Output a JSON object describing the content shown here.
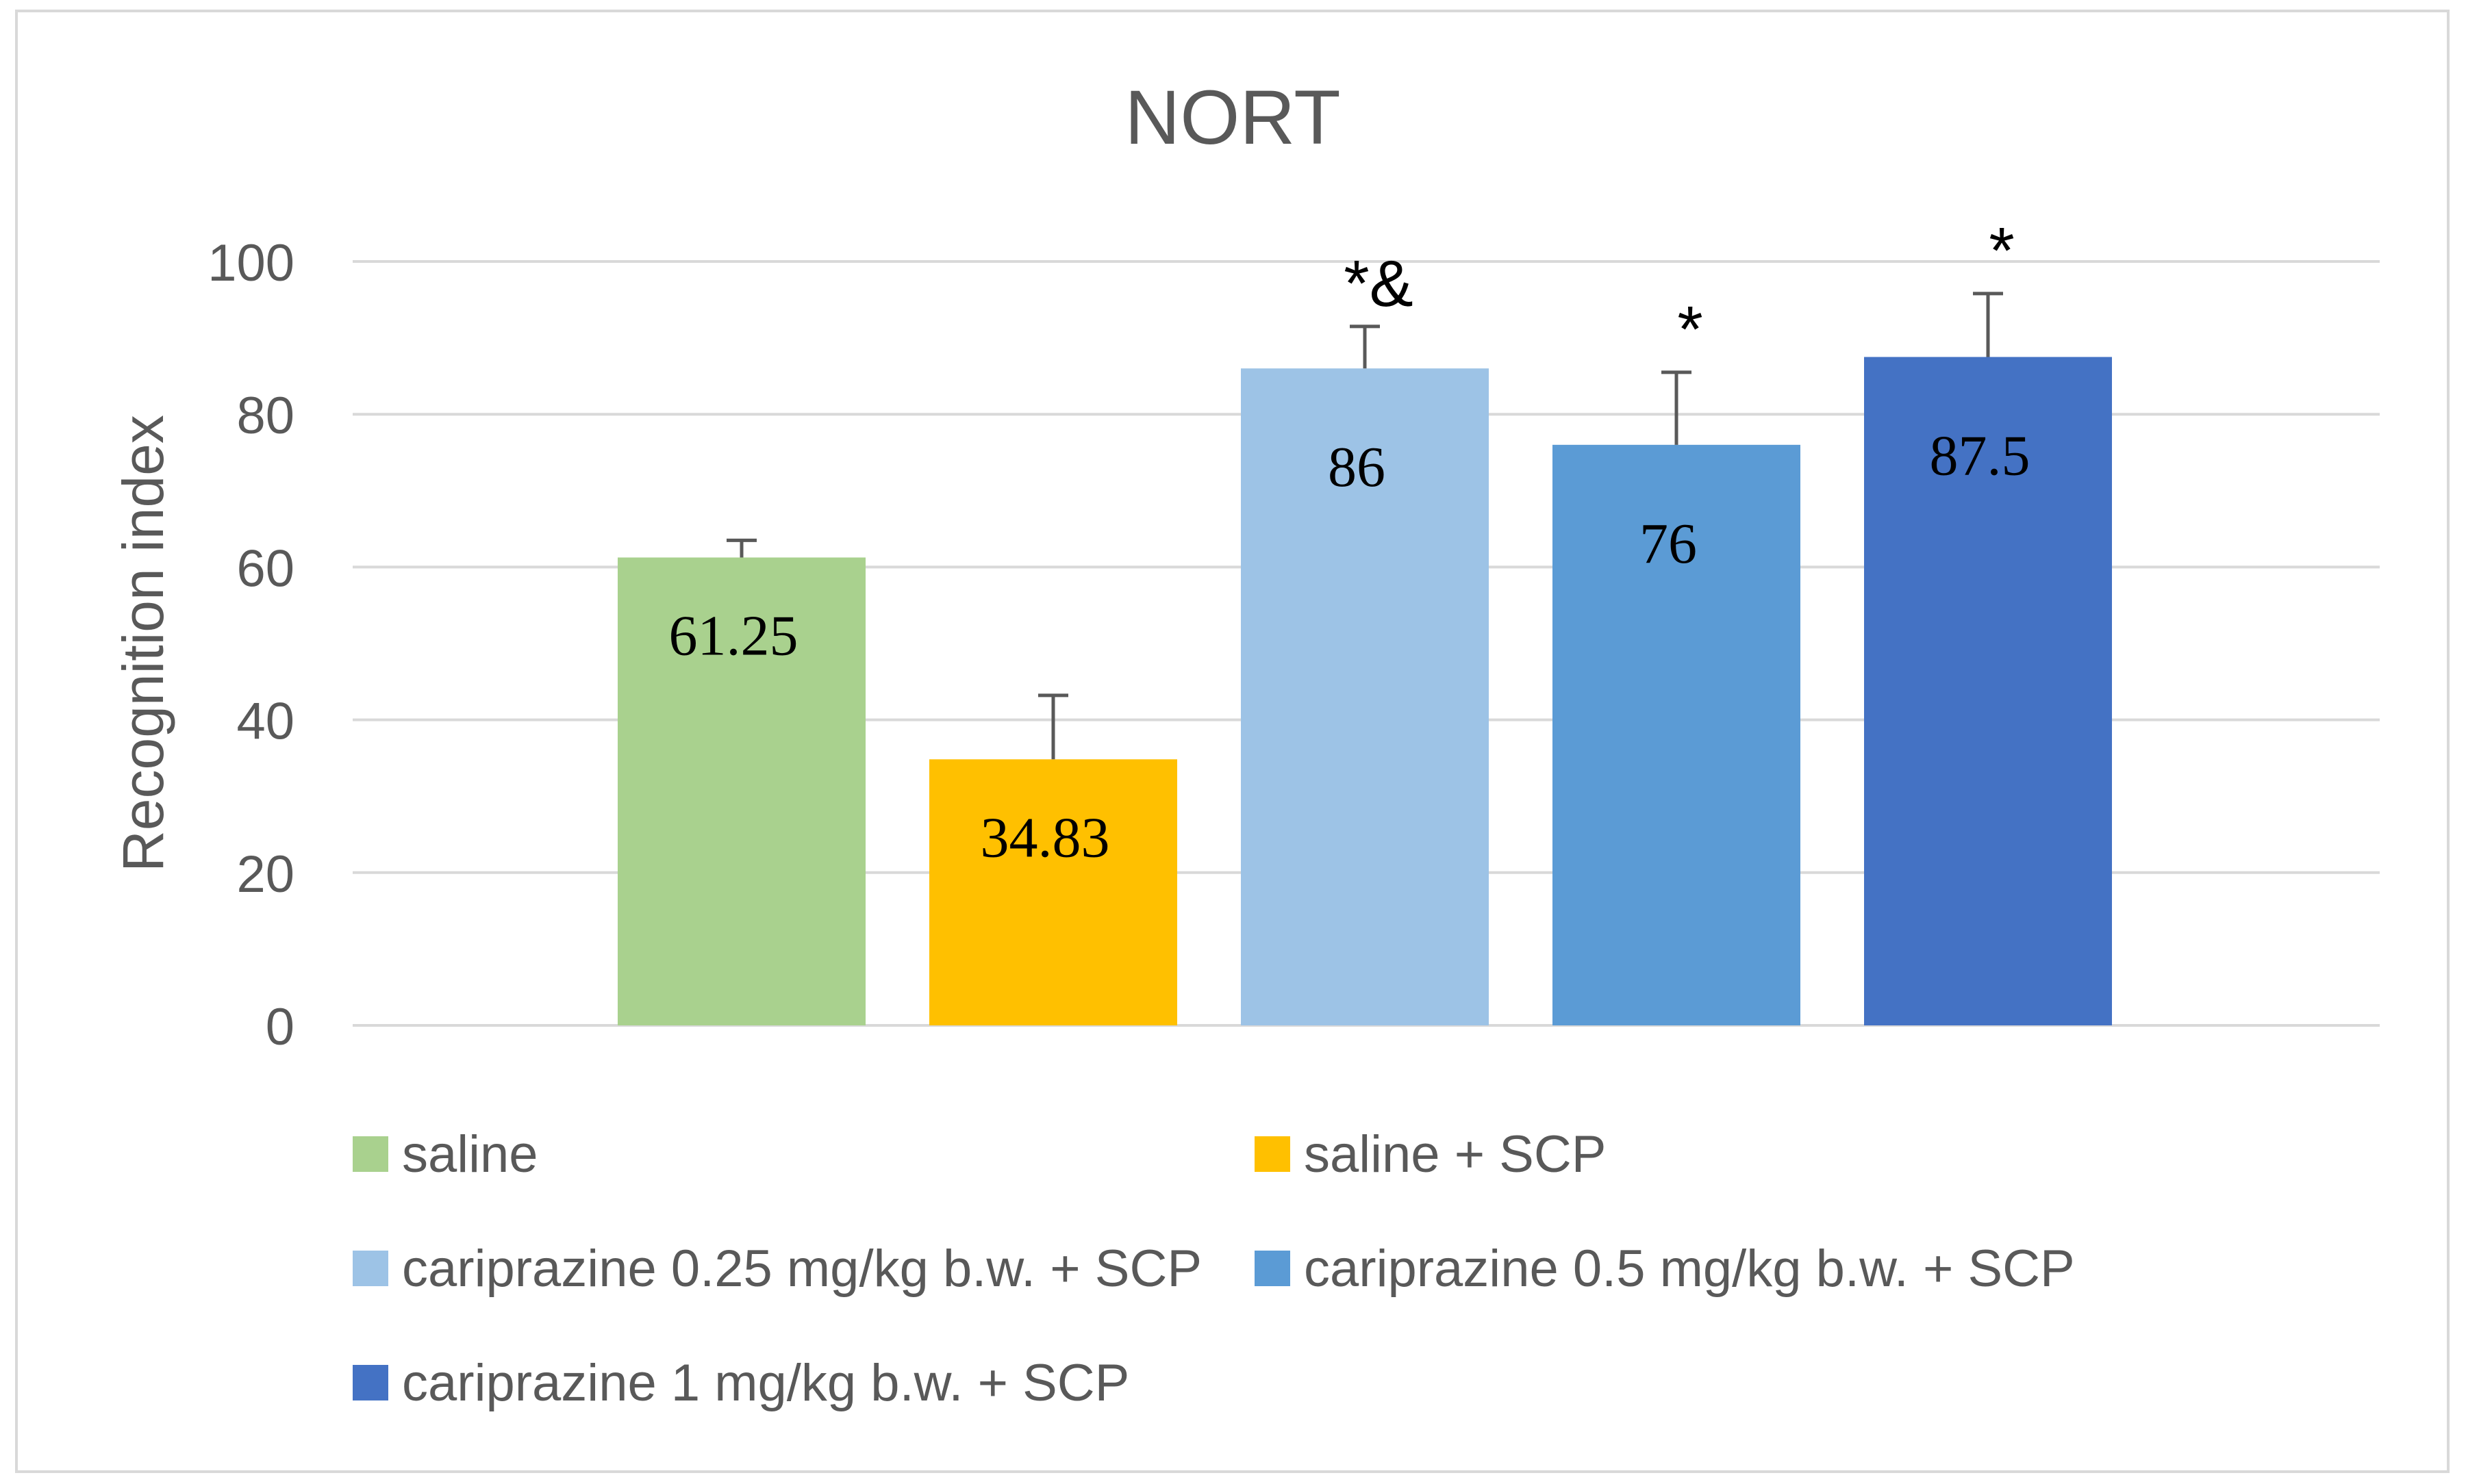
{
  "chart_data": {
    "type": "bar",
    "title": "NORT",
    "xlabel": "",
    "ylabel": "Recognition index",
    "ylim": [
      0,
      100
    ],
    "yticks": [
      0,
      20,
      40,
      60,
      80,
      100
    ],
    "grid": true,
    "legend_position": "bottom",
    "categories": [
      "saline",
      "saline + SCP",
      "cariprazine 0.25 mg/kg b.w. + SCP",
      "cariprazine 0.5 mg/kg b.w. + SCP",
      "cariprazine 1 mg/kg b.w. + SCP"
    ],
    "values": [
      61.25,
      34.83,
      86,
      76,
      87.5
    ],
    "value_labels": [
      "61.25",
      "34.83",
      "86",
      "76",
      "87.5"
    ],
    "error_upper": [
      63.5,
      43.2,
      91.5,
      85.5,
      95.8
    ],
    "significance": [
      "",
      "",
      "*&",
      "*",
      "*"
    ],
    "colors": [
      "#a9d18e",
      "#ffc000",
      "#9dc3e6",
      "#5b9bd5",
      "#4472c4"
    ]
  }
}
